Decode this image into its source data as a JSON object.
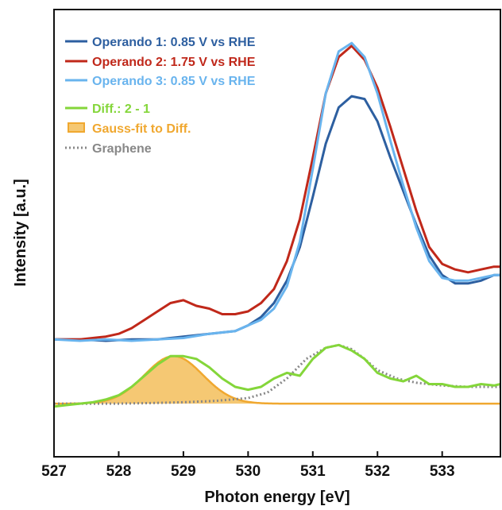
{
  "chart_data": {
    "type": "line",
    "title": "",
    "xlabel": "Photon energy [eV]",
    "ylabel": "Intensity [a.u.]",
    "xlim": [
      527.0,
      533.9
    ],
    "ylim": [
      -0.25,
      1.35
    ],
    "x_ticks": [
      527,
      528,
      529,
      530,
      531,
      532,
      533
    ],
    "x_tick_labels": [
      "527",
      "528",
      "529",
      "530",
      "531",
      "532",
      "533"
    ],
    "y_ticks_shown": false,
    "grid": false,
    "legend": {
      "placement": "top-left"
    },
    "series": [
      {
        "name": "Operando 1: 0.85 V vs RHE",
        "color": "#2d5fa0",
        "style": "line",
        "x": [
          527.0,
          527.4,
          527.8,
          528.2,
          528.6,
          529.0,
          529.4,
          529.8,
          530.0,
          530.2,
          530.4,
          530.6,
          530.8,
          531.0,
          531.2,
          531.4,
          531.6,
          531.8,
          532.0,
          532.2,
          532.4,
          532.6,
          532.8,
          533.0,
          533.2,
          533.4,
          533.6,
          533.8,
          533.9
        ],
        "values": [
          0.17,
          0.17,
          0.165,
          0.17,
          0.17,
          0.18,
          0.19,
          0.2,
          0.22,
          0.25,
          0.3,
          0.38,
          0.5,
          0.68,
          0.87,
          1.0,
          1.04,
          1.03,
          0.95,
          0.82,
          0.7,
          0.58,
          0.47,
          0.4,
          0.37,
          0.37,
          0.38,
          0.4,
          0.4
        ]
      },
      {
        "name": "Operando 2: 1.75 V vs RHE",
        "color": "#c0281a",
        "style": "line",
        "x": [
          527.0,
          527.4,
          527.8,
          528.0,
          528.2,
          528.4,
          528.6,
          528.8,
          529.0,
          529.2,
          529.4,
          529.6,
          529.8,
          530.0,
          530.2,
          530.4,
          530.6,
          530.8,
          531.0,
          531.2,
          531.4,
          531.6,
          531.8,
          532.0,
          532.2,
          532.4,
          532.6,
          532.8,
          533.0,
          533.2,
          533.4,
          533.6,
          533.8,
          533.9
        ],
        "values": [
          0.17,
          0.17,
          0.18,
          0.19,
          0.21,
          0.24,
          0.27,
          0.3,
          0.31,
          0.29,
          0.28,
          0.26,
          0.26,
          0.27,
          0.3,
          0.35,
          0.45,
          0.6,
          0.82,
          1.05,
          1.18,
          1.22,
          1.17,
          1.07,
          0.93,
          0.78,
          0.63,
          0.5,
          0.44,
          0.42,
          0.41,
          0.42,
          0.43,
          0.43
        ]
      },
      {
        "name": "Operando 3: 0.85 V vs RHE",
        "color": "#69b4ee",
        "style": "line",
        "x": [
          527.0,
          527.4,
          527.8,
          528.2,
          528.6,
          529.0,
          529.4,
          529.8,
          530.0,
          530.2,
          530.4,
          530.6,
          530.8,
          531.0,
          531.2,
          531.4,
          531.6,
          531.8,
          532.0,
          532.2,
          532.4,
          532.6,
          532.8,
          533.0,
          533.2,
          533.4,
          533.6,
          533.8,
          533.9
        ],
        "values": [
          0.17,
          0.165,
          0.17,
          0.165,
          0.17,
          0.175,
          0.19,
          0.2,
          0.22,
          0.24,
          0.28,
          0.36,
          0.52,
          0.78,
          1.05,
          1.2,
          1.23,
          1.18,
          1.05,
          0.88,
          0.72,
          0.57,
          0.45,
          0.39,
          0.38,
          0.38,
          0.39,
          0.4,
          0.4
        ]
      },
      {
        "name": "Diff.: 2 - 1",
        "color": "#84d63a",
        "style": "line",
        "x": [
          527.0,
          527.2,
          527.4,
          527.6,
          527.8,
          528.0,
          528.2,
          528.4,
          528.6,
          528.8,
          529.0,
          529.2,
          529.4,
          529.6,
          529.8,
          530.0,
          530.2,
          530.4,
          530.6,
          530.8,
          531.0,
          531.2,
          531.4,
          531.6,
          531.8,
          532.0,
          532.2,
          532.4,
          532.6,
          532.8,
          533.0,
          533.2,
          533.4,
          533.6,
          533.8,
          533.9
        ],
        "values": [
          -0.07,
          -0.065,
          -0.06,
          -0.055,
          -0.045,
          -0.03,
          0.0,
          0.04,
          0.08,
          0.11,
          0.11,
          0.1,
          0.07,
          0.03,
          0.0,
          -0.01,
          0.0,
          0.03,
          0.05,
          0.04,
          0.1,
          0.14,
          0.15,
          0.13,
          0.1,
          0.05,
          0.03,
          0.02,
          0.04,
          0.01,
          0.01,
          0.0,
          0.0,
          0.01,
          0.005,
          0.01
        ]
      },
      {
        "name": "Gauss-fit to Diff.",
        "color": "#f0a830",
        "fill": "#f5c873",
        "style": "filled-gaussian",
        "amplitude": 0.17,
        "center": 528.85,
        "sigma": 0.45,
        "baseline": -0.06
      },
      {
        "name": "Graphene",
        "color": "#888888",
        "style": "dotted",
        "x": [
          527.0,
          527.5,
          528.0,
          528.5,
          529.0,
          529.5,
          530.0,
          530.3,
          530.6,
          530.9,
          531.2,
          531.4,
          531.6,
          531.8,
          532.0,
          532.3,
          532.6,
          533.0,
          533.4,
          533.9
        ],
        "values": [
          -0.06,
          -0.06,
          -0.06,
          -0.058,
          -0.055,
          -0.05,
          -0.04,
          -0.02,
          0.03,
          0.1,
          0.14,
          0.15,
          0.135,
          0.1,
          0.06,
          0.03,
          0.015,
          0.005,
          0.0,
          0.0
        ]
      }
    ]
  }
}
